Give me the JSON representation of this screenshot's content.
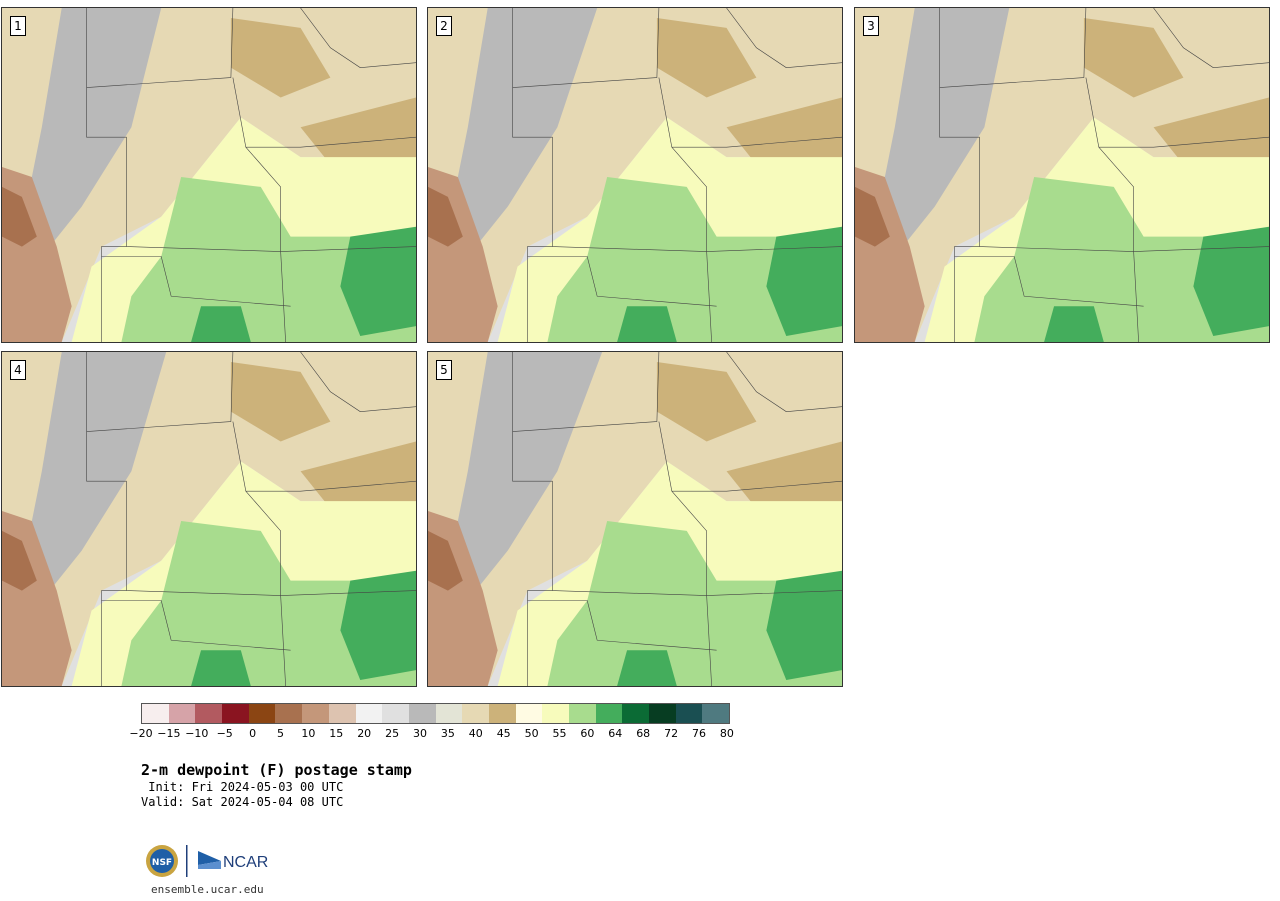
{
  "panels": [
    {
      "label": "1"
    },
    {
      "label": "2"
    },
    {
      "label": "3"
    },
    {
      "label": "4"
    },
    {
      "label": "5"
    }
  ],
  "colorbar": {
    "colors": [
      "#f7eeee",
      "#d6a3a8",
      "#b25a60",
      "#8a1420",
      "#8b4513",
      "#a8714f",
      "#c4977a",
      "#ddc3b0",
      "#f2f2f2",
      "#e0e0e0",
      "#b9b9b9",
      "#e3e4d6",
      "#e6d9b4",
      "#ccb27a",
      "#fffbe3",
      "#f7fbbc",
      "#a8dc8e",
      "#44ad5c",
      "#0b6b35",
      "#073d22",
      "#1a4f52",
      "#4f7a80"
    ],
    "ticks": [
      "−20",
      "−15",
      "−10",
      "−5",
      "0",
      "5",
      "10",
      "15",
      "20",
      "25",
      "30",
      "35",
      "40",
      "45",
      "50",
      "55",
      "60",
      "64",
      "68",
      "72",
      "76",
      "80"
    ]
  },
  "title": "2-m dewpoint (F) postage stamp",
  "init": " Init: Fri 2024-05-03 00 UTC",
  "valid": "Valid: Sat 2024-05-04 08 UTC",
  "site": "ensemble.ucar.edu",
  "logo": {
    "nsf": "NSF",
    "ncar": "NCAR"
  }
}
